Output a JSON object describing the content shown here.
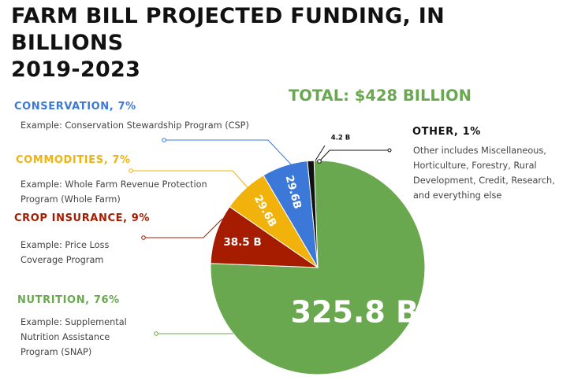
{
  "title_line1": "FARM BILL PROJECTED FUNDING, IN BILLIONS",
  "title_line2": "2019-2023",
  "total": "TOTAL: $428 BILLION",
  "colors": {
    "nutrition": "#6aa84f",
    "crop_insurance": "#a61c00",
    "commodities": "#f1b30b",
    "conservation": "#3c78d8",
    "other": "#111111"
  },
  "categories": [
    {
      "key": "conservation",
      "heading": "CONSERVATION, 7%",
      "desc": "Example: Conservation Stewardship Program (CSP)"
    },
    {
      "key": "commodities",
      "heading": "COMMODITIES, 7%",
      "desc": "Example: Whole Farm Revenue Protection\n Program (Whole Farm)"
    },
    {
      "key": "crop_insurance",
      "heading": "CROP INSURANCE, 9%",
      "desc": "Example: Price Loss\nCoverage Program"
    },
    {
      "key": "nutrition",
      "heading": "NUTRITION, 76%",
      "desc": "Example: Supplemental\nNutrition Assistance\nProgram (SNAP)"
    },
    {
      "key": "other",
      "heading": "OTHER, 1%",
      "desc": "Other includes Miscellaneous,\nHorticulture, Forestry, Rural\nDevelopment, Credit, Research,\nand everything else"
    }
  ],
  "chart_data": {
    "type": "pie",
    "unit": "billions USD",
    "slices": [
      {
        "key": "nutrition",
        "label": "325.8 B",
        "value": 325.8
      },
      {
        "key": "crop_insurance",
        "label": "38.5 B",
        "value": 38.5
      },
      {
        "key": "commodities",
        "label": "29.6B",
        "value": 29.6
      },
      {
        "key": "conservation",
        "label": "29.6B",
        "value": 29.6
      },
      {
        "key": "other",
        "label": "4.2 B",
        "value": 4.2
      }
    ]
  }
}
